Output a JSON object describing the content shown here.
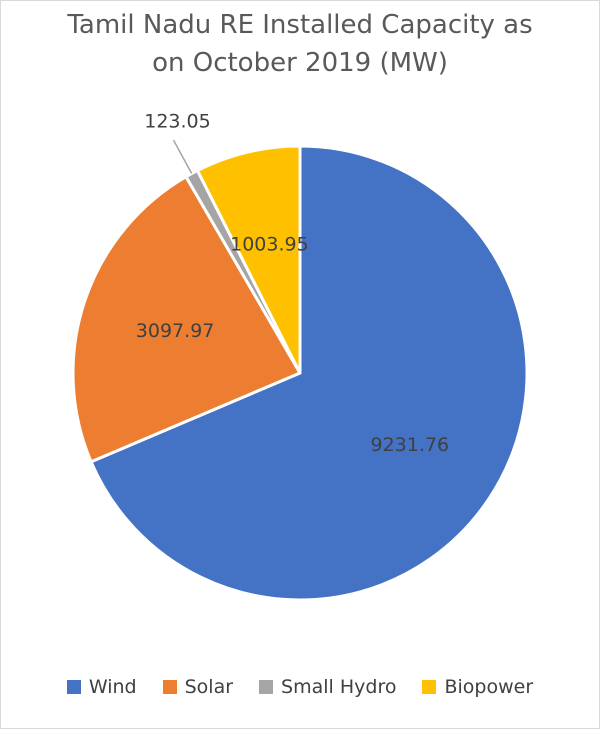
{
  "chart": {
    "title_line1": "Tamil Nadu RE Installed Capacity as",
    "title_line2": "on October 2019 (MW)"
  },
  "chart_data": {
    "type": "pie",
    "title": "Tamil Nadu RE Installed Capacity as on October 2019 (MW)",
    "categories": [
      "Wind",
      "Solar",
      "Small Hydro",
      "Biopower"
    ],
    "values": [
      9231.76,
      3097.97,
      123.05,
      1003.95
    ],
    "labels": [
      "9231.76",
      "3097.97",
      "123.05",
      "1003.95"
    ],
    "colors": [
      "#4472c4",
      "#ed7d31",
      "#a5a5a5",
      "#ffc000"
    ],
    "legend_position": "bottom",
    "start_angle": "12 o'clock, clockwise"
  }
}
